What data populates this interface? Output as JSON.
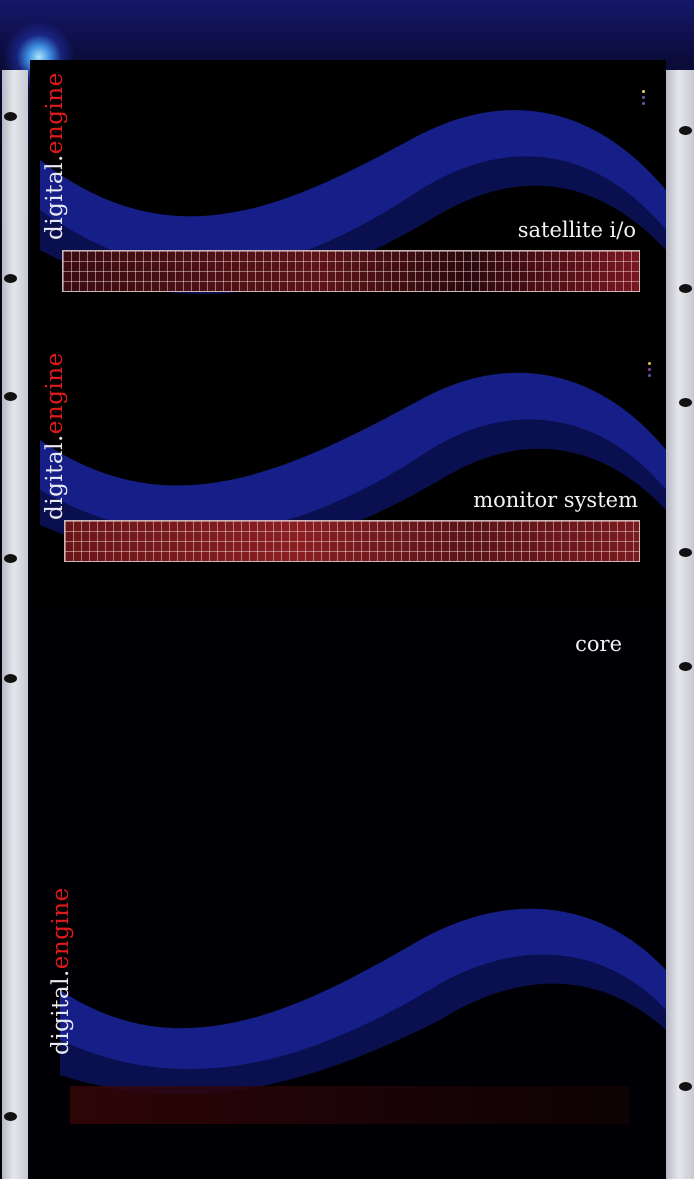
{
  "brand": {
    "part1": "digital.",
    "part2": "engine"
  },
  "sections": [
    {
      "label": "satellite i/o"
    },
    {
      "label": "monitor system"
    },
    {
      "label": "core"
    }
  ],
  "colors": {
    "accent_red": "#e01a1a",
    "wave_blue": "#1a24a0",
    "grid_red": "#6a1518"
  }
}
